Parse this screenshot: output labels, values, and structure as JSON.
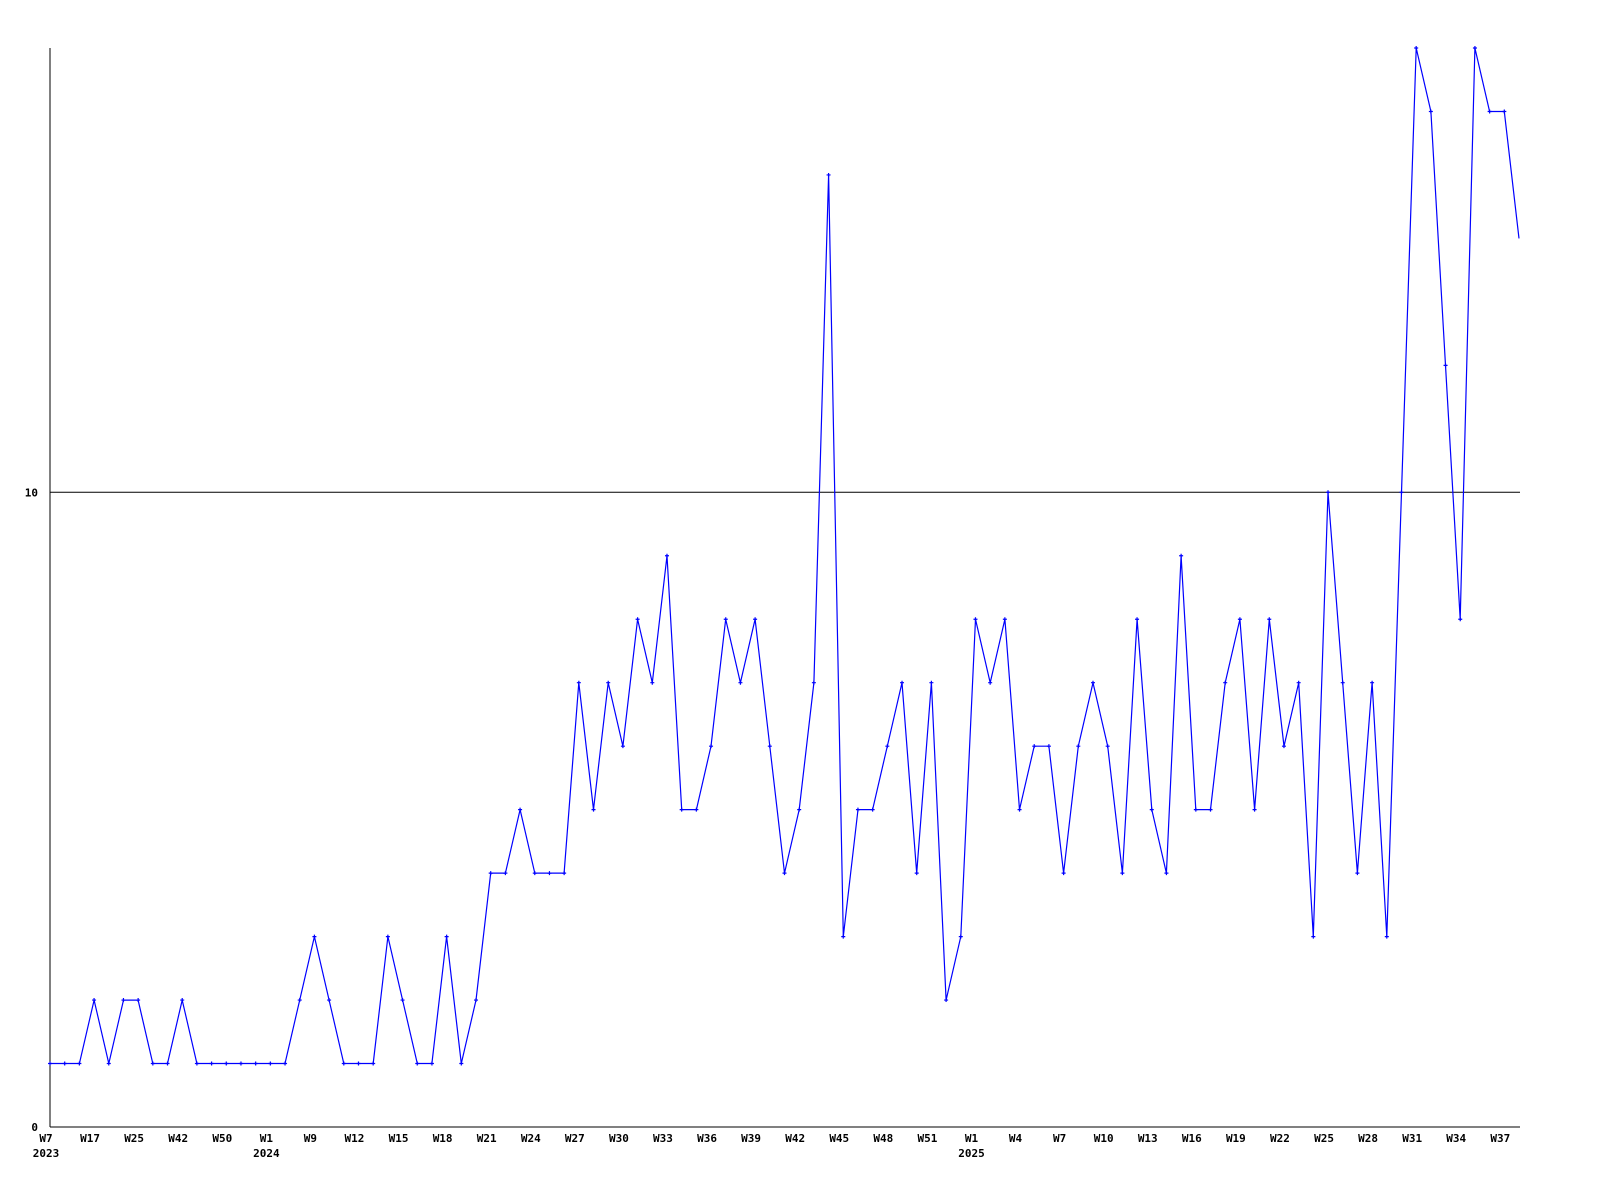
{
  "chart_data": {
    "type": "line",
    "title": "",
    "xlabel": "",
    "ylabel": "",
    "ylim": [
      0,
      17
    ],
    "grid": "horizontal line at 10",
    "yticks": [
      "0",
      "10"
    ],
    "series_color": "#0000ff",
    "x_ticks": [
      {
        "index": 0,
        "label": "W7",
        "year": "2023"
      },
      {
        "index": 3,
        "label": "W17"
      },
      {
        "index": 6,
        "label": "W25"
      },
      {
        "index": 9,
        "label": "W42"
      },
      {
        "index": 12,
        "label": "W50"
      },
      {
        "index": 15,
        "label": "W1",
        "year": "2024"
      },
      {
        "index": 18,
        "label": "W9"
      },
      {
        "index": 21,
        "label": "W12"
      },
      {
        "index": 24,
        "label": "W15"
      },
      {
        "index": 27,
        "label": "W18"
      },
      {
        "index": 30,
        "label": "W21"
      },
      {
        "index": 33,
        "label": "W24"
      },
      {
        "index": 36,
        "label": "W27"
      },
      {
        "index": 39,
        "label": "W30"
      },
      {
        "index": 42,
        "label": "W33"
      },
      {
        "index": 45,
        "label": "W36"
      },
      {
        "index": 48,
        "label": "W39"
      },
      {
        "index": 51,
        "label": "W42"
      },
      {
        "index": 54,
        "label": "W45"
      },
      {
        "index": 57,
        "label": "W48"
      },
      {
        "index": 60,
        "label": "W51"
      },
      {
        "index": 63,
        "label": "W1",
        "year": "2025"
      },
      {
        "index": 66,
        "label": "W4"
      },
      {
        "index": 69,
        "label": "W7"
      },
      {
        "index": 72,
        "label": "W10"
      },
      {
        "index": 75,
        "label": "W13"
      },
      {
        "index": 78,
        "label": "W16"
      },
      {
        "index": 81,
        "label": "W19"
      },
      {
        "index": 84,
        "label": "W22"
      },
      {
        "index": 87,
        "label": "W25"
      },
      {
        "index": 90,
        "label": "W28"
      },
      {
        "index": 93,
        "label": "W31"
      },
      {
        "index": 96,
        "label": "W34"
      },
      {
        "index": 99,
        "label": "W37"
      }
    ],
    "values": [
      1,
      1,
      1,
      2,
      1,
      2,
      2,
      1,
      1,
      2,
      1,
      1,
      1,
      1,
      1,
      1,
      1,
      2,
      3,
      2,
      1,
      1,
      1,
      3,
      2,
      1,
      1,
      3,
      1,
      2,
      4,
      4,
      5,
      4,
      4,
      4,
      7,
      5,
      7,
      6,
      8,
      7,
      9,
      5,
      5,
      6,
      8,
      7,
      8,
      6,
      4,
      5,
      7,
      15,
      3,
      5,
      5,
      6,
      7,
      4,
      7,
      2,
      3,
      8,
      7,
      8,
      5,
      6,
      6,
      4,
      6,
      7,
      6,
      4,
      8,
      5,
      4,
      9,
      5,
      5,
      7,
      8,
      5,
      8,
      6,
      7,
      3,
      10,
      7,
      4,
      7,
      3,
      10,
      17,
      16,
      12,
      8,
      17,
      16,
      16,
      14
    ]
  }
}
